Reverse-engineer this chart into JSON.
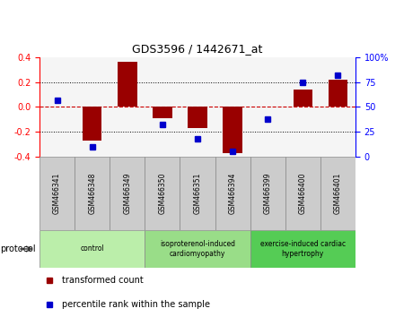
{
  "title": "GDS3596 / 1442671_at",
  "samples": [
    "GSM466341",
    "GSM466348",
    "GSM466349",
    "GSM466350",
    "GSM466351",
    "GSM466394",
    "GSM466399",
    "GSM466400",
    "GSM466401"
  ],
  "red_bars": [
    0.0,
    -0.27,
    0.36,
    -0.09,
    -0.17,
    -0.37,
    0.0,
    0.14,
    0.22
  ],
  "blue_dots_pct": [
    57,
    10,
    null,
    32,
    18,
    5,
    38,
    75,
    82
  ],
  "ylim_left": [
    -0.4,
    0.4
  ],
  "ylim_right": [
    0,
    100
  ],
  "yticks_left": [
    -0.4,
    -0.2,
    0.0,
    0.2,
    0.4
  ],
  "yticks_right": [
    0,
    25,
    50,
    75,
    100
  ],
  "group_boundaries": [
    {
      "start": 0,
      "end": 2,
      "label": "control",
      "color": "#bbeeaa"
    },
    {
      "start": 3,
      "end": 5,
      "label": "isoproterenol-induced\ncardiomyopathy",
      "color": "#99dd88"
    },
    {
      "start": 6,
      "end": 8,
      "label": "exercise-induced cardiac\nhypertrophy",
      "color": "#55cc55"
    }
  ],
  "bar_color": "#990000",
  "dot_color": "#0000cc",
  "plot_bg": "#f5f5f5",
  "zero_line_color": "#cc0000",
  "sample_box_color": "#cccccc",
  "protocol_label": "protocol",
  "legend_red": "transformed count",
  "legend_blue": "percentile rank within the sample"
}
